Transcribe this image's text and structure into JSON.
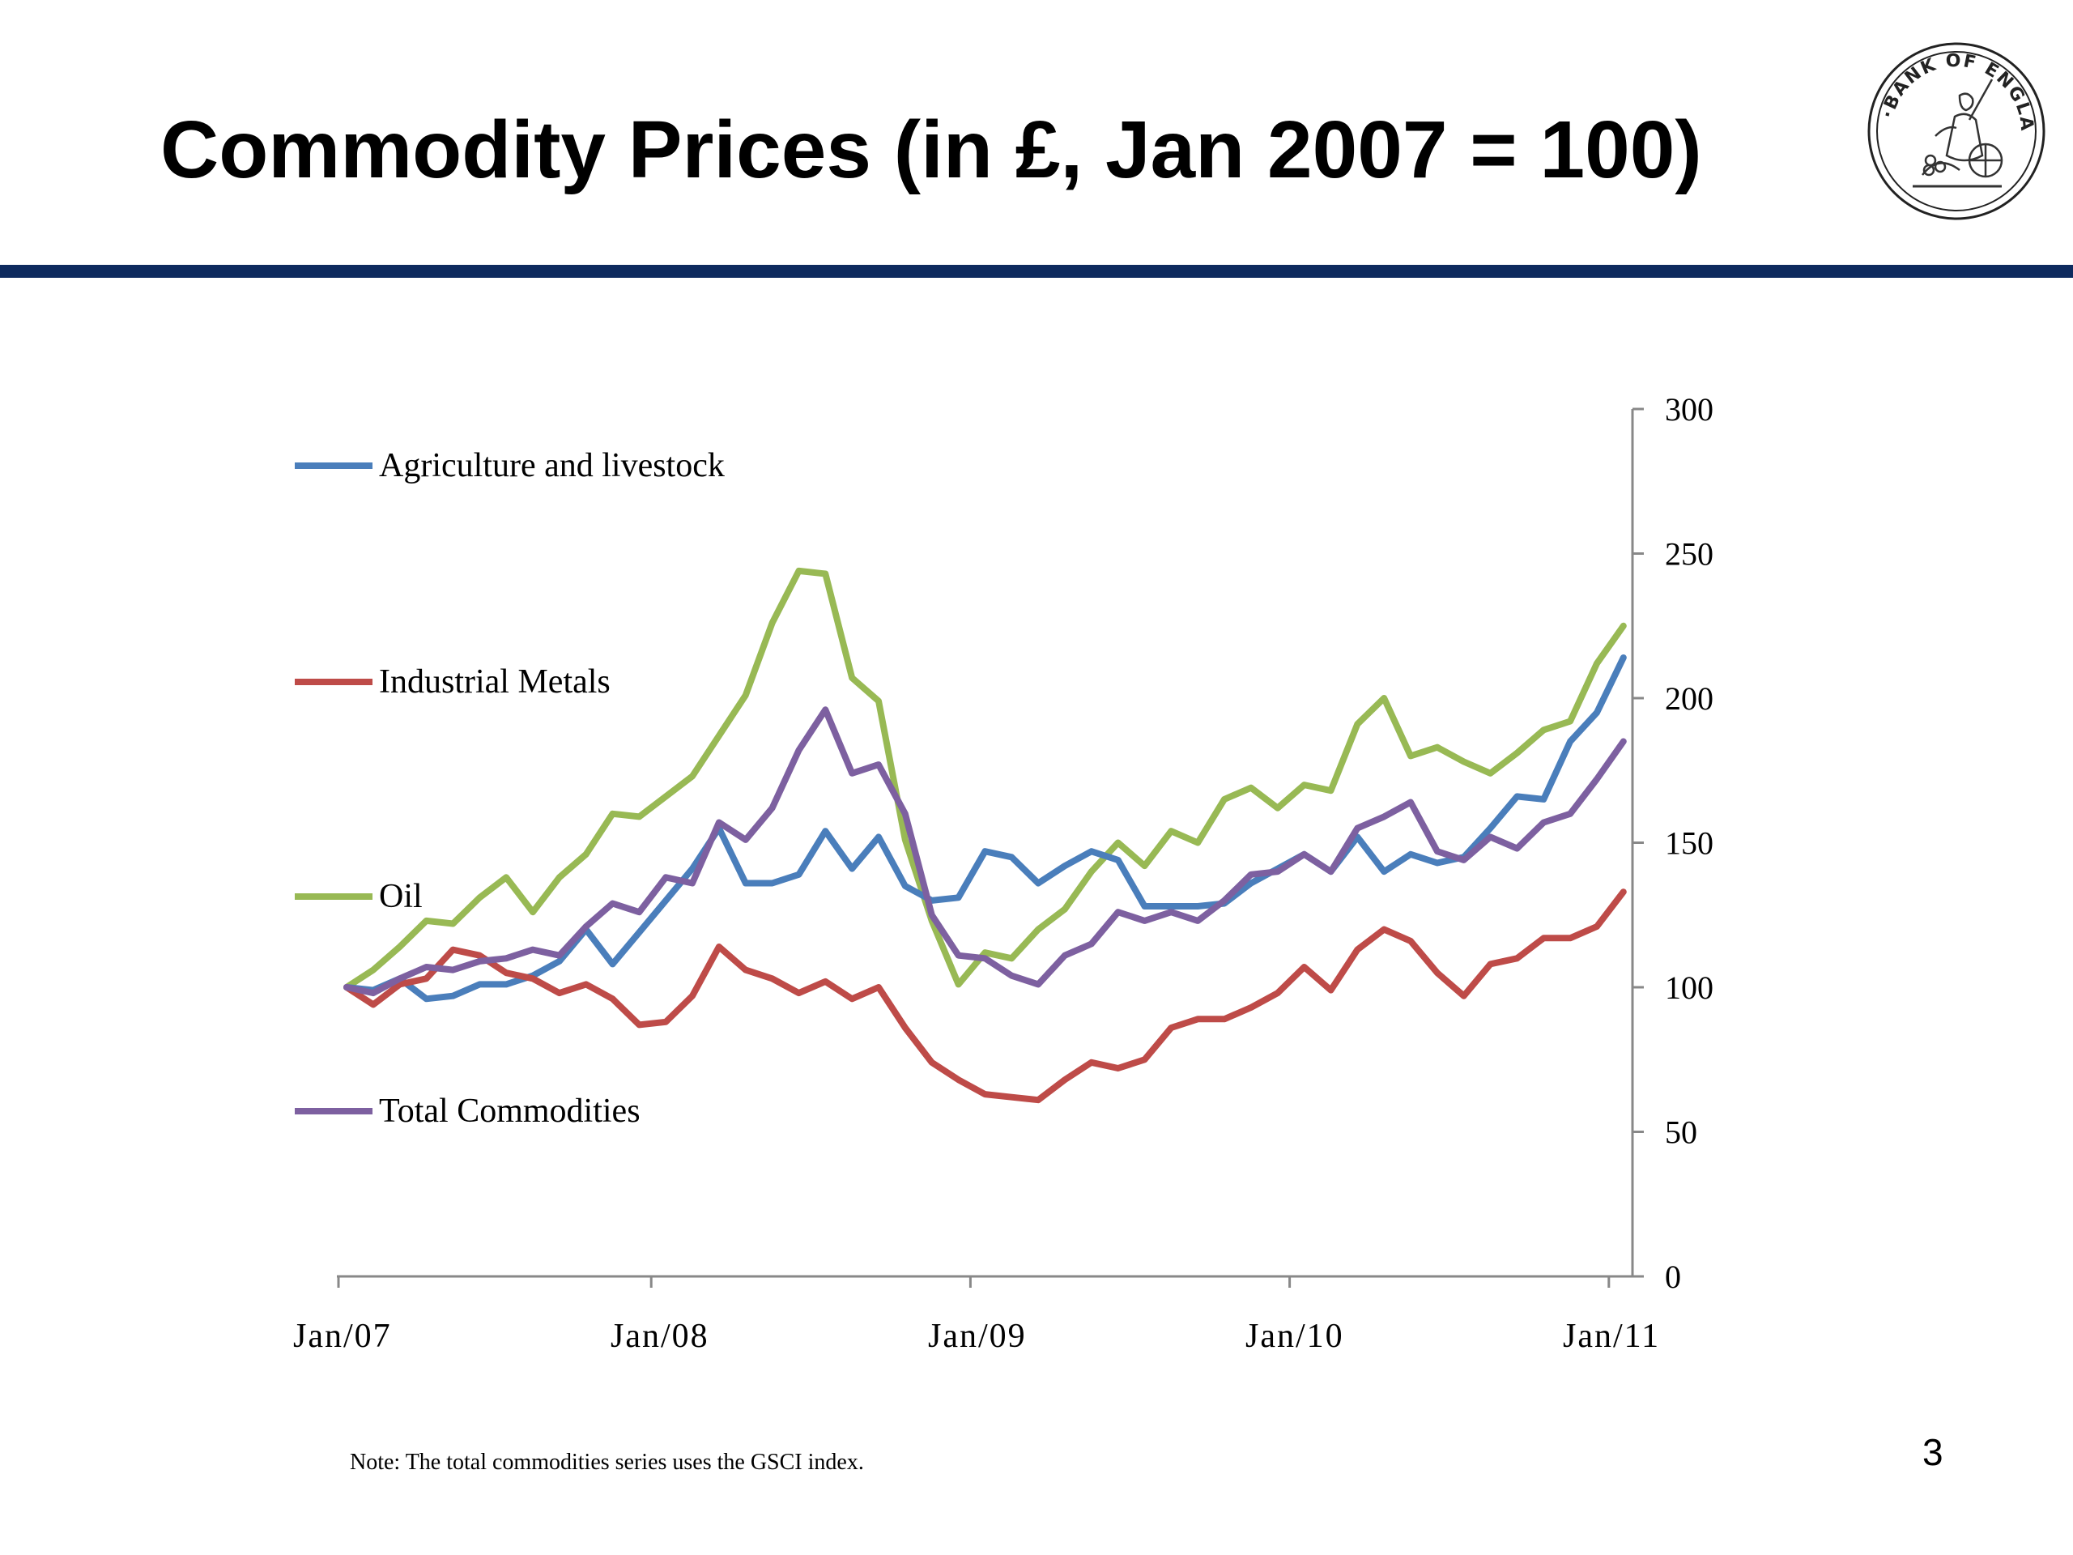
{
  "slide": {
    "title": "Commodity Prices (in £, Jan 2007 = 100)",
    "note": "Note: The total commodities series uses the GSCI index.",
    "page_number": "3",
    "logo_text": "BANK OF ENGLAND",
    "rule_color": "#0e2a5e"
  },
  "chart_data": {
    "type": "line",
    "title": "",
    "xlabel": "",
    "ylabel": "",
    "ylim": [
      0,
      300
    ],
    "yticks": [
      0,
      50,
      100,
      150,
      200,
      250,
      300
    ],
    "ytick_labels": [
      "0",
      "50",
      "100",
      "150",
      "200",
      "250",
      "300"
    ],
    "y_axis_side": "right",
    "xtick_labels": [
      "Jan/07",
      "Jan/08",
      "Jan/09",
      "Jan/10",
      "Jan/11"
    ],
    "x": [
      "2007-01",
      "2007-02",
      "2007-03",
      "2007-04",
      "2007-05",
      "2007-06",
      "2007-07",
      "2007-08",
      "2007-09",
      "2007-10",
      "2007-11",
      "2007-12",
      "2008-01",
      "2008-02",
      "2008-03",
      "2008-04",
      "2008-05",
      "2008-06",
      "2008-07",
      "2008-08",
      "2008-09",
      "2008-10",
      "2008-11",
      "2008-12",
      "2009-01",
      "2009-02",
      "2009-03",
      "2009-04",
      "2009-05",
      "2009-06",
      "2009-07",
      "2009-08",
      "2009-09",
      "2009-10",
      "2009-11",
      "2009-12",
      "2010-01",
      "2010-02",
      "2010-03",
      "2010-04",
      "2010-05",
      "2010-06",
      "2010-07",
      "2010-08",
      "2010-09",
      "2010-10",
      "2010-11",
      "2010-12",
      "2011-01"
    ],
    "grid": false,
    "legend_placement": "left, stacked vertically",
    "series": [
      {
        "name": "Agriculture  and livestock",
        "color": "#4a7ebb",
        "values": [
          100,
          99,
          103,
          96,
          97,
          101,
          101,
          104,
          109,
          120,
          108,
          119,
          130,
          141,
          155,
          136,
          136,
          139,
          154,
          141,
          152,
          135,
          130,
          131,
          147,
          145,
          136,
          142,
          147,
          144,
          128,
          128,
          128,
          129,
          136,
          141,
          146,
          140,
          152,
          140,
          146,
          143,
          145,
          155,
          166,
          165,
          185,
          195,
          214
        ]
      },
      {
        "name": "Industrial Metals",
        "color": "#be4b48",
        "values": [
          100,
          94,
          101,
          103,
          113,
          111,
          105,
          103,
          98,
          101,
          96,
          87,
          88,
          97,
          114,
          106,
          103,
          98,
          102,
          96,
          100,
          86,
          74,
          68,
          63,
          62,
          61,
          68,
          74,
          72,
          75,
          86,
          89,
          89,
          93,
          98,
          107,
          99,
          113,
          120,
          116,
          105,
          97,
          108,
          110,
          117,
          117,
          121,
          133
        ]
      },
      {
        "name": "Oil",
        "color": "#98b954",
        "values": [
          100,
          106,
          114,
          123,
          122,
          131,
          138,
          126,
          138,
          146,
          160,
          159,
          166,
          173,
          187,
          201,
          226,
          244,
          243,
          207,
          199,
          151,
          123,
          101,
          112,
          110,
          120,
          127,
          140,
          150,
          142,
          154,
          150,
          165,
          169,
          162,
          170,
          168,
          191,
          200,
          180,
          183,
          178,
          174,
          181,
          189,
          192,
          212,
          225
        ]
      },
      {
        "name": "Total Commodities",
        "color": "#7d60a0",
        "values": [
          100,
          98,
          103,
          107,
          106,
          109,
          110,
          113,
          111,
          121,
          129,
          126,
          138,
          136,
          157,
          151,
          162,
          182,
          196,
          174,
          177,
          160,
          125,
          111,
          110,
          104,
          101,
          111,
          115,
          126,
          123,
          126,
          123,
          130,
          139,
          140,
          146,
          140,
          155,
          159,
          164,
          147,
          144,
          152,
          148,
          157,
          160,
          172,
          185
        ]
      }
    ]
  }
}
